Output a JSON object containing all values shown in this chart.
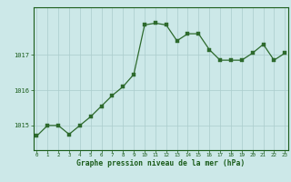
{
  "x": [
    0,
    1,
    2,
    3,
    4,
    5,
    6,
    7,
    8,
    9,
    10,
    11,
    12,
    13,
    14,
    15,
    16,
    17,
    18,
    19,
    20,
    21,
    22,
    23
  ],
  "y": [
    1014.7,
    1015.0,
    1015.0,
    1014.75,
    1015.0,
    1015.25,
    1015.55,
    1015.85,
    1016.1,
    1016.45,
    1017.85,
    1017.9,
    1017.85,
    1017.4,
    1017.6,
    1017.6,
    1017.15,
    1016.85,
    1016.85,
    1016.85,
    1017.05,
    1017.3,
    1016.85,
    1017.05
  ],
  "line_color": "#2d6a2d",
  "marker_color": "#2d6a2d",
  "bg_color": "#cce8e8",
  "grid_color_major": "#aacccc",
  "grid_color_minor": "#ccdede",
  "yticks": [
    1015,
    1016,
    1017
  ],
  "xticks": [
    0,
    1,
    2,
    3,
    4,
    5,
    6,
    7,
    8,
    9,
    10,
    11,
    12,
    13,
    14,
    15,
    16,
    17,
    18,
    19,
    20,
    21,
    22,
    23
  ],
  "xlabel": "Graphe pression niveau de la mer (hPa)",
  "ylim": [
    1014.3,
    1018.35
  ],
  "xlim": [
    -0.3,
    23.3
  ],
  "tick_label_color": "#1a5c1a",
  "xlabel_color": "#1a5c1a",
  "border_color": "#1a5c1a",
  "bottom_bar_color": "#1a5c1a"
}
